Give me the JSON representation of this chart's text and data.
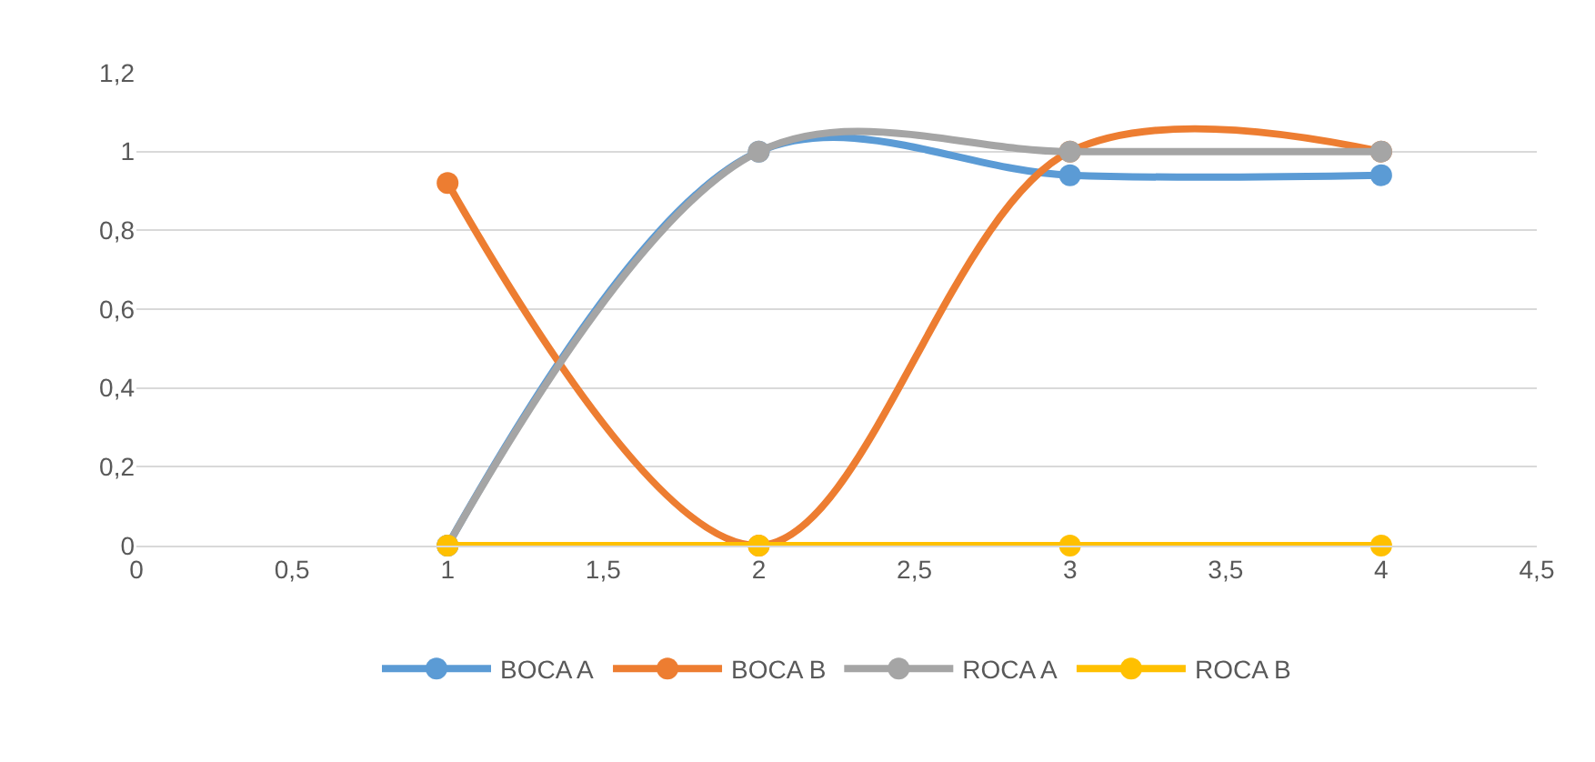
{
  "chart_data": {
    "type": "line",
    "x": [
      1,
      2,
      3,
      4
    ],
    "series": [
      {
        "name": "BOCA A",
        "color": "#5b9bd5",
        "values": [
          0,
          1,
          0.94,
          0.94
        ]
      },
      {
        "name": "BOCA B",
        "color": "#ed7d31",
        "values": [
          0.92,
          0,
          1,
          1
        ]
      },
      {
        "name": "ROCA A",
        "color": "#a5a5a5",
        "values": [
          0,
          1,
          1,
          1
        ]
      },
      {
        "name": "ROCA B",
        "color": "#ffc000",
        "values": [
          0,
          0,
          0,
          0
        ]
      }
    ],
    "xlim": [
      0,
      4.5
    ],
    "xticks": [
      0,
      {
        "value": 0.5,
        "label": "0,5"
      },
      1,
      {
        "value": 1.5,
        "label": "1,5"
      },
      2,
      {
        "value": 2.5,
        "label": "2,5"
      },
      3,
      {
        "value": 3.5,
        "label": "3,5"
      },
      4,
      {
        "value": 4.5,
        "label": "4,5"
      }
    ],
    "ylim": [
      0,
      1.2
    ],
    "yticks": [
      0,
      {
        "value": 0.2,
        "label": "0,2"
      },
      {
        "value": 0.4,
        "label": "0,4"
      },
      {
        "value": 0.6,
        "label": "0,6"
      },
      {
        "value": 0.8,
        "label": "0,8"
      },
      1,
      {
        "value": 1.2,
        "label": "1,2"
      }
    ],
    "grid": "y",
    "legend": "bottom",
    "marker": "circle",
    "line_style": "solid"
  }
}
